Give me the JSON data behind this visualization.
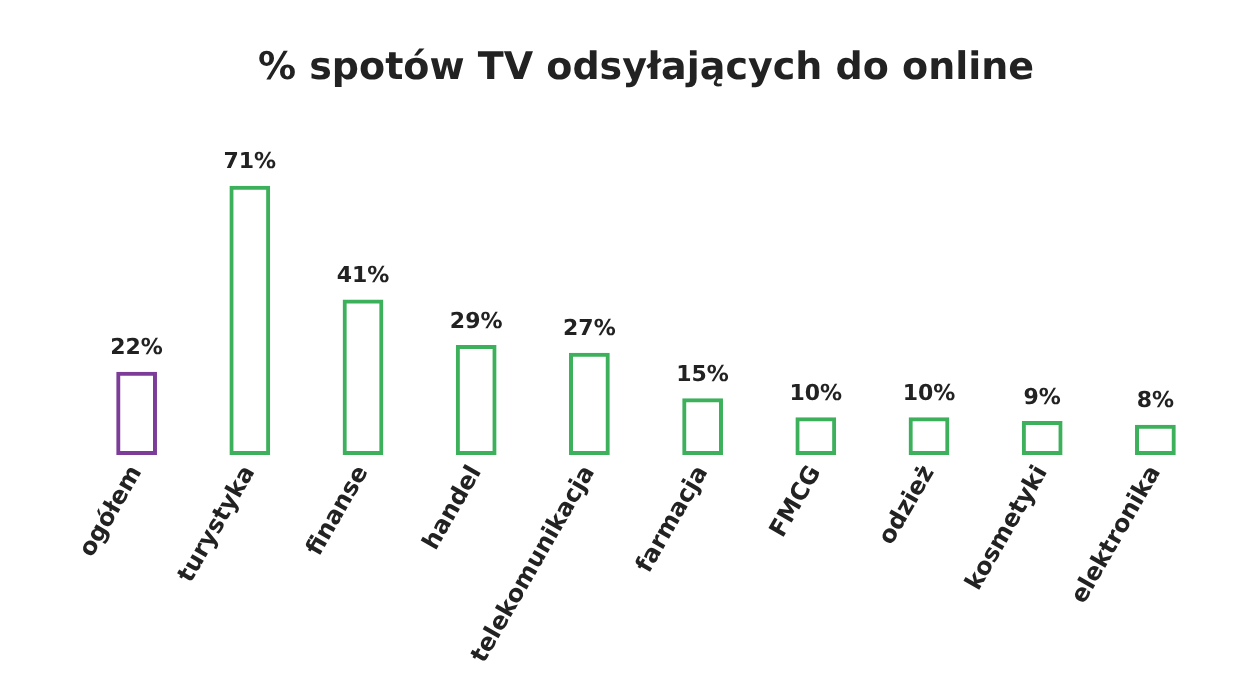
{
  "chart_data": {
    "type": "bar",
    "title": "% spotów TV odsyłających do online",
    "categories": [
      "ogółem",
      "turystyka",
      "finanse",
      "handel",
      "telekomunikacja",
      "farmacja",
      "FMCG",
      "odzież",
      "kosmetyki",
      "elektronika"
    ],
    "values": [
      22,
      71,
      41,
      29,
      27,
      15,
      10,
      10,
      9,
      8
    ],
    "colors": [
      "#7d3c98",
      "#3cb05a",
      "#3cb05a",
      "#3cb05a",
      "#3cb05a",
      "#3cb05a",
      "#3cb05a",
      "#3cb05a",
      "#3cb05a",
      "#3cb05a"
    ],
    "value_labels": [
      "22%",
      "71%",
      "41%",
      "29%",
      "27%",
      "15%",
      "10%",
      "10%",
      "9%",
      "8%"
    ],
    "grid": false,
    "legend": false
  }
}
